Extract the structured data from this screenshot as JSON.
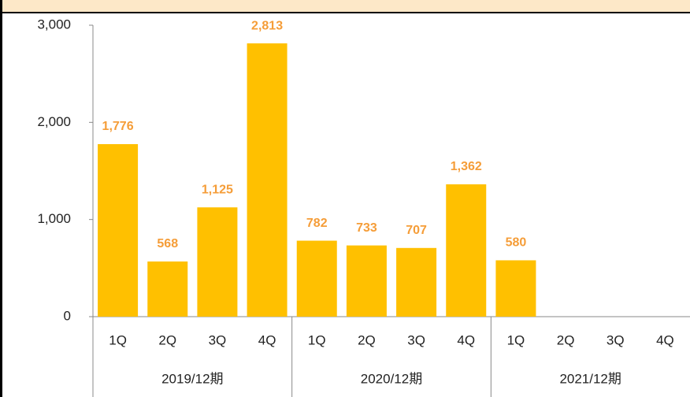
{
  "chart_data": {
    "type": "bar",
    "categories": [
      "1Q",
      "2Q",
      "3Q",
      "4Q",
      "1Q",
      "2Q",
      "3Q",
      "4Q",
      "1Q",
      "2Q",
      "3Q",
      "4Q"
    ],
    "groups": [
      "2019/12期",
      "2020/12期",
      "2021/12期"
    ],
    "values": [
      1776,
      568,
      1125,
      2813,
      782,
      733,
      707,
      1362,
      580,
      null,
      null,
      null
    ],
    "value_labels": [
      "1,776",
      "568",
      "1,125",
      "2,813",
      "782",
      "733",
      "707",
      "1,362",
      "580",
      null,
      null,
      null
    ],
    "color": "#ffc000",
    "label_color": "#f59d38",
    "ylim": [
      0,
      3000
    ],
    "yticks": [
      0,
      {
        "value": 1000,
        "label": "1,000"
      },
      {
        "value": 2000,
        "label": "2,000"
      },
      {
        "value": 3000,
        "label": "3,000"
      }
    ]
  }
}
